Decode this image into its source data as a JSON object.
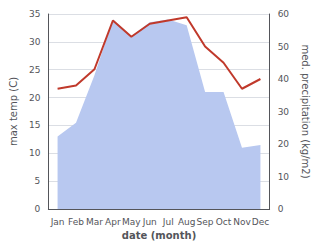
{
  "chart_data": {
    "type": "line",
    "categories": [
      "Jan",
      "Feb",
      "Mar",
      "Apr",
      "May",
      "Jun",
      "Jul",
      "Aug",
      "Sep",
      "Oct",
      "Nov",
      "Dec"
    ],
    "xlabel": "date (month)",
    "ylabel": "max temp (C)",
    "y2label": "med. precipitation (kg/m2)",
    "ylim": [
      0,
      35
    ],
    "yticks": [
      0,
      5,
      10,
      15,
      20,
      25,
      30,
      35
    ],
    "y2lim": [
      0,
      60
    ],
    "y2ticks": [
      0,
      10,
      20,
      30,
      40,
      50,
      60
    ],
    "grid": true,
    "series": [
      {
        "type": "area",
        "color": "#b8c8f0",
        "values": [
          13,
          15.5,
          24,
          34,
          31,
          33.5,
          34,
          33,
          21,
          21,
          11,
          11.5
        ]
      },
      {
        "type": "line",
        "color": "#c0392b",
        "axis": "y2",
        "values": [
          37,
          38,
          43,
          58,
          53,
          57,
          58,
          59,
          50,
          45,
          37,
          40
        ]
      }
    ]
  }
}
